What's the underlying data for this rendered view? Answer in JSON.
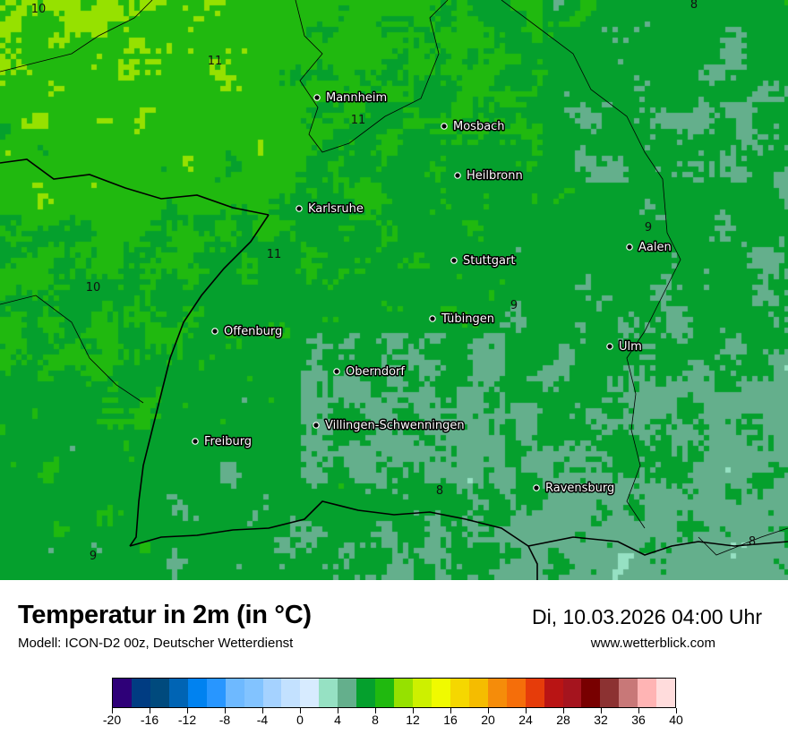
{
  "title": "Temperatur in 2m (in °C)",
  "subtitle": "Modell: ICON-D2 00z, Deutscher Wetterdienst",
  "datetime": "Di, 10.03.2026 04:00 Uhr",
  "website": "www.wetterblick.com",
  "cities": [
    {
      "name": "Mannheim"
    },
    {
      "name": "Mosbach"
    },
    {
      "name": "Heilbronn"
    },
    {
      "name": "Karlsruhe"
    },
    {
      "name": "Stuttgart"
    },
    {
      "name": "Aalen"
    },
    {
      "name": "Tübingen"
    },
    {
      "name": "Ulm"
    },
    {
      "name": "Offenburg"
    },
    {
      "name": "Oberndorf"
    },
    {
      "name": "Villingen-Schwenningen"
    },
    {
      "name": "Freiburg"
    },
    {
      "name": "Ravensburg"
    }
  ],
  "contour_labels": [
    "10",
    "11",
    "11",
    "11",
    "10",
    "9",
    "9",
    "8",
    "9",
    "8",
    "8"
  ],
  "colorbar": {
    "min": -20,
    "max": 40,
    "step": 2,
    "tick_labels": [
      "-20",
      "-16",
      "-12",
      "-8",
      "-4",
      "0",
      "4",
      "8",
      "12",
      "16",
      "20",
      "24",
      "28",
      "32",
      "36",
      "40"
    ],
    "colors": [
      "#2e0078",
      "#003c82",
      "#004a7d",
      "#0064b4",
      "#0082f0",
      "#2896ff",
      "#6eb9ff",
      "#82c3ff",
      "#a5d2ff",
      "#c3e1ff",
      "#d7ebff",
      "#96e1c3",
      "#64af8c",
      "#05a02d",
      "#20b90f",
      "#96e100",
      "#cdf000",
      "#f0fa00",
      "#f5d700",
      "#f5bc00",
      "#f58c0a",
      "#f56e0a",
      "#e63c0a",
      "#b91414",
      "#a5141e",
      "#780000",
      "#8c3232",
      "#c87878",
      "#ffb4b4",
      "#ffdcdc"
    ]
  }
}
